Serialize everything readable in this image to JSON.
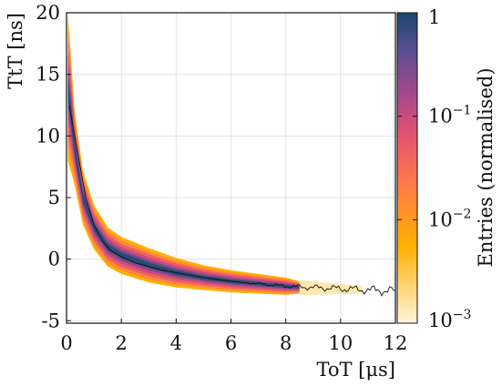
{
  "chart_data": {
    "type": "heatmap",
    "xlabel": "ToT [μs]",
    "ylabel": "TtT [ns]",
    "xlim": [
      0,
      12
    ],
    "ylim": [
      -5.2,
      20
    ],
    "x_ticks": [
      "0",
      "2",
      "4",
      "6",
      "8",
      "10",
      "12"
    ],
    "y_ticks": [
      "-5",
      "0",
      "5",
      "10",
      "15",
      "20"
    ],
    "grid": true,
    "colorbar": {
      "label": "Entries (normalised)",
      "scale": "log",
      "range": [
        0.001,
        1
      ],
      "ticks": [
        {
          "value": 1,
          "label": "1"
        },
        {
          "value": 0.1,
          "label": "10",
          "exp": "−1"
        },
        {
          "value": 0.01,
          "label": "10",
          "exp": "−2"
        },
        {
          "value": 0.001,
          "label": "10",
          "exp": "−3"
        }
      ],
      "colors": [
        "#fff4dc",
        "#ffb000",
        "#ff7a4a",
        "#e6546e",
        "#a0478f",
        "#5a4f8f",
        "#1a476b"
      ]
    },
    "mean_curve": {
      "x": [
        0.1,
        0.3,
        0.5,
        0.7,
        1.0,
        1.3,
        1.6,
        2.0,
        2.5,
        3.0,
        3.5,
        4.0,
        5.0,
        6.0,
        7.0,
        8.0,
        9.0,
        10.0,
        11.0,
        12.0
      ],
      "y": [
        12.5,
        10.0,
        7.5,
        5.0,
        2.8,
        1.5,
        0.7,
        0.2,
        -0.3,
        -0.6,
        -0.9,
        -1.1,
        -1.5,
        -1.8,
        -2.0,
        -2.2,
        -2.3,
        -2.4,
        -2.5,
        -2.6
      ]
    },
    "band": {
      "center_x": [
        0.05,
        0.3,
        0.6,
        1.0,
        1.5,
        2.0,
        3.0,
        4.0,
        5.0,
        6.0,
        7.0,
        8.0,
        8.5
      ],
      "center_y": [
        14.0,
        9.0,
        5.0,
        2.6,
        1.0,
        0.3,
        -0.5,
        -1.1,
        -1.5,
        -1.8,
        -2.0,
        -2.2,
        -2.3
      ],
      "halfwidth": [
        6.0,
        3.0,
        2.2,
        1.8,
        1.6,
        1.5,
        1.4,
        1.2,
        1.0,
        0.9,
        0.8,
        0.7,
        0.5
      ]
    }
  }
}
